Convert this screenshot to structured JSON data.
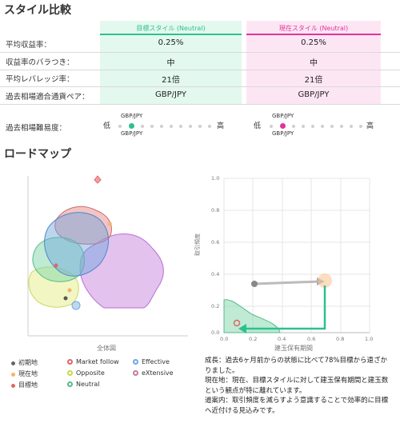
{
  "sections": {
    "style_compare_title": "スタイル比較",
    "roadmap_title": "ロードマップ"
  },
  "table": {
    "target_header": "目標スタイル (Neutral)",
    "current_header": "現在スタイル (Neutral)",
    "rows": [
      {
        "label": "平均収益率：",
        "target": "0.25%",
        "current": "0.25%"
      },
      {
        "label": "収益率のバラつき：",
        "target": "中",
        "current": "中"
      },
      {
        "label": "平均レバレッジ率：",
        "target": "21倍",
        "current": "21倍"
      },
      {
        "label": "過去相場適合通貨ペア：",
        "target": "GBP/JPY",
        "current": "GBP/JPY"
      }
    ],
    "difficulty_label": "過去相場難易度：",
    "low": "低",
    "high": "高",
    "pair_top": "GBP/JPY",
    "pair_bottom": "GBP/JPY"
  },
  "left_chart": {
    "xlabel": "全体図"
  },
  "right_chart": {
    "xlabel": "建玉保有期間",
    "ylabel": "取引頻度",
    "y_ticks": [
      "1.0",
      "0.8",
      "0.6",
      "0.4",
      "0.2",
      "0.0"
    ],
    "x_ticks": [
      "0.0",
      "0.2",
      "0.4",
      "0.6",
      "0.8",
      "1.0"
    ]
  },
  "legend": [
    {
      "label": "初期地",
      "color": "#666666"
    },
    {
      "label": "Market follow",
      "color": "#e06666"
    },
    {
      "label": "Effective",
      "color": "#6fa8dc"
    },
    {
      "label": "現在地",
      "color": "#f6b26b"
    },
    {
      "label": "Opposite",
      "color": "#c9d94a"
    },
    {
      "label": "eXtensive",
      "color": "#c27ba0"
    },
    {
      "label": "目標地",
      "color": "#e06666"
    },
    {
      "label": "Neutral",
      "color": "#57bb8a"
    }
  ],
  "description": {
    "line1": "成長：過去6ヶ月前からの状態に比べて78%目標から遠ざか",
    "line2": "りました。",
    "line3": "現在地：現在、目標スタイルに対して建玉保有期間と建玉数",
    "line4": "という観点が特に離れています。",
    "line5": "道案内：取引頻度を減らすよう意識することで効率的に目標",
    "line6": "へ近付ける見込みです。"
  },
  "colors": {
    "neutral_green": "#2ec08f",
    "current_pink": "#e0339d",
    "target_bg": "#e3f8ef",
    "current_bg": "#fde6f4"
  }
}
